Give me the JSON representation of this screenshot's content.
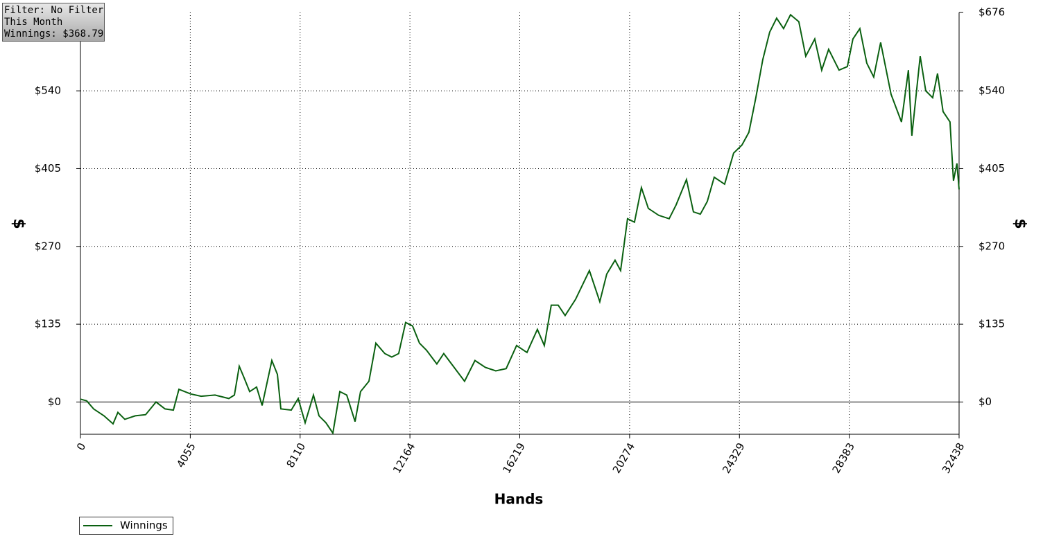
{
  "chart_data": {
    "type": "line",
    "annotations": [
      "Filter: No Filter",
      "This Month",
      "Winnings: $368.79"
    ],
    "xlabel": "Hands",
    "ylabel": "$",
    "y2label": "$",
    "xlim": [
      0,
      32438
    ],
    "xticks": [
      0,
      4055,
      8110,
      12164,
      16219,
      20274,
      24329,
      28383,
      32438
    ],
    "ylim": [
      -56,
      676
    ],
    "yticks": [
      {
        "value": 0,
        "label": "$0"
      },
      {
        "value": 135,
        "label": "$135"
      },
      {
        "value": 270,
        "label": "$270"
      },
      {
        "value": 405,
        "label": "$405"
      },
      {
        "value": 540,
        "label": "$540"
      }
    ],
    "y2lim": [
      -56,
      676
    ],
    "y2ticks": [
      {
        "value": 0,
        "label": "$0"
      },
      {
        "value": 135,
        "label": "$135"
      },
      {
        "value": 270,
        "label": "$270"
      },
      {
        "value": 405,
        "label": "$405"
      },
      {
        "value": 540,
        "label": "$540"
      },
      {
        "value": 676,
        "label": "$676"
      }
    ],
    "grid": true,
    "legend": "bottom-left",
    "x": [
      0,
      230,
      486,
      870,
      1203,
      1382,
      1638,
      2022,
      2406,
      2790,
      3123,
      3430,
      3635,
      4070,
      4454,
      4966,
      5478,
      5683,
      5862,
      6042,
      6246,
      6502,
      6707,
      7066,
      7270,
      7398,
      7782,
      8038,
      8294,
      8602,
      8806,
      9062,
      9318,
      9574,
      9830,
      10138,
      10342,
      10650,
      10906,
      11238,
      11494,
      11750,
      12006,
      12262,
      12518,
      12774,
      13158,
      13414,
      13798,
      14182,
      14566,
      14950,
      15334,
      15718,
      16102,
      16486,
      16870,
      17126,
      17382,
      17638,
      17894,
      18278,
      18790,
      19174,
      19430,
      19738,
      19942,
      20198,
      20454,
      20710,
      20966,
      21350,
      21734,
      21990,
      22374,
      22630,
      22886,
      23142,
      23398,
      23782,
      24115,
      24422,
      24678,
      24934,
      25190,
      25446,
      25702,
      25958,
      26214,
      26522,
      26778,
      27110,
      27366,
      27622,
      28006,
      28314,
      28518,
      28774,
      29030,
      29286,
      29542,
      29926,
      30310,
      30566,
      30694,
      31002,
      31206,
      31462,
      31642,
      31846,
      32102,
      32230,
      32358,
      32438
    ],
    "series": [
      {
        "name": "Winnings",
        "color": "#0a6010",
        "values": [
          5,
          2,
          -12,
          -24,
          -38,
          -18,
          -30,
          -24,
          -22,
          0,
          -12,
          -14,
          22,
          14,
          10,
          12,
          6,
          12,
          62,
          42,
          18,
          26,
          -6,
          72,
          48,
          -12,
          -14,
          6,
          -36,
          12,
          -24,
          -36,
          -54,
          18,
          12,
          -34,
          18,
          36,
          102,
          84,
          78,
          84,
          138,
          132,
          102,
          90,
          66,
          84,
          60,
          36,
          72,
          60,
          54,
          58,
          98,
          86,
          126,
          98,
          168,
          168,
          150,
          178,
          228,
          174,
          222,
          246,
          228,
          318,
          312,
          372,
          336,
          324,
          318,
          342,
          386,
          330,
          326,
          348,
          390,
          378,
          432,
          446,
          468,
          528,
          594,
          642,
          666,
          648,
          672,
          660,
          600,
          630,
          576,
          612,
          576,
          582,
          630,
          648,
          588,
          564,
          624,
          534,
          486,
          576,
          462,
          600,
          540,
          528,
          570,
          504,
          486,
          384,
          414,
          369
        ]
      }
    ]
  }
}
